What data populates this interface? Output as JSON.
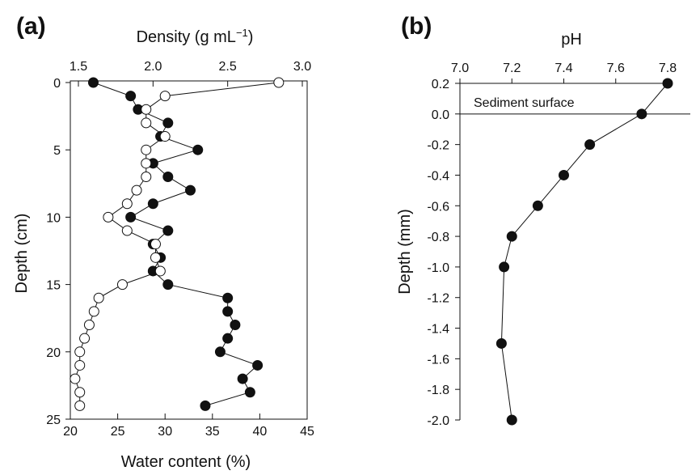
{
  "chart_data": [
    {
      "panel": "(a)",
      "type": "line",
      "top_axis": {
        "label_main": "Density (g mL",
        "label_sup": "−1",
        "label_end": ")",
        "range": [
          1.5,
          3.0
        ],
        "ticks": [
          "1.5",
          "2.0",
          "2.5",
          "3.0"
        ]
      },
      "bottom_axis": {
        "label": "Water content (%)",
        "range": [
          20,
          45
        ],
        "ticks": [
          "20",
          "25",
          "30",
          "35",
          "40",
          "45"
        ]
      },
      "y_axis": {
        "label": "Depth (cm)",
        "range": [
          0,
          25
        ],
        "inverted": true,
        "ticks": [
          "0",
          "5",
          "10",
          "15",
          "20",
          "25"
        ]
      },
      "series": [
        {
          "marker": "filled",
          "color": "#111111",
          "axis": "density",
          "points": [
            [
              1.6,
              0
            ],
            [
              1.85,
              1
            ],
            [
              1.9,
              2
            ],
            [
              2.1,
              3
            ],
            [
              2.05,
              4
            ],
            [
              2.3,
              5
            ],
            [
              2.0,
              6
            ],
            [
              2.1,
              7
            ],
            [
              2.25,
              8
            ],
            [
              2.0,
              9
            ],
            [
              1.85,
              10
            ],
            [
              2.1,
              11
            ],
            [
              2.0,
              12
            ],
            [
              2.05,
              13
            ],
            [
              2.0,
              14
            ],
            [
              2.1,
              15
            ],
            [
              2.5,
              16
            ],
            [
              2.5,
              17
            ],
            [
              2.55,
              18
            ],
            [
              2.5,
              19
            ],
            [
              2.45,
              20
            ],
            [
              2.7,
              21
            ],
            [
              2.6,
              22
            ],
            [
              2.65,
              23
            ],
            [
              2.35,
              24
            ]
          ]
        },
        {
          "marker": "open",
          "color": "#111111",
          "axis": "water",
          "points": [
            [
              42,
              0
            ],
            [
              30,
              1
            ],
            [
              28,
              2
            ],
            [
              28,
              3
            ],
            [
              30,
              4
            ],
            [
              28,
              5
            ],
            [
              28,
              6
            ],
            [
              28,
              7
            ],
            [
              27,
              8
            ],
            [
              26,
              9
            ],
            [
              24,
              10
            ],
            [
              26,
              11
            ],
            [
              29,
              12
            ],
            [
              29,
              13
            ],
            [
              29.5,
              14
            ],
            [
              25.5,
              15
            ],
            [
              23,
              16
            ],
            [
              22.5,
              17
            ],
            [
              22,
              18
            ],
            [
              21.5,
              19
            ],
            [
              21,
              20
            ],
            [
              21,
              21
            ],
            [
              20.5,
              22
            ],
            [
              21,
              23
            ],
            [
              21,
              24
            ]
          ]
        }
      ]
    },
    {
      "panel": "(b)",
      "type": "line",
      "x_axis": {
        "label": "pH",
        "range": [
          7.0,
          7.8
        ],
        "position": "top",
        "ticks": [
          "7.0",
          "7.2",
          "7.4",
          "7.6",
          "7.8"
        ]
      },
      "y_axis": {
        "label": "Depth (mm)",
        "range": [
          -2.0,
          0.2
        ],
        "ticks": [
          "0.2",
          "0.0",
          "-0.2",
          "-0.4",
          "-0.6",
          "-0.8",
          "-1.0",
          "-1.2",
          "-1.4",
          "-1.6",
          "-1.8",
          "-2.0"
        ]
      },
      "annotation": "Sediment surface",
      "annotation_y": 0.0,
      "series": [
        {
          "marker": "filled",
          "color": "#111111",
          "points": [
            [
              7.8,
              0.2
            ],
            [
              7.7,
              0.0
            ],
            [
              7.5,
              -0.2
            ],
            [
              7.4,
              -0.4
            ],
            [
              7.3,
              -0.6
            ],
            [
              7.2,
              -0.8
            ],
            [
              7.17,
              -1.0
            ],
            [
              7.16,
              -1.5
            ],
            [
              7.2,
              -2.0
            ]
          ]
        }
      ]
    }
  ]
}
